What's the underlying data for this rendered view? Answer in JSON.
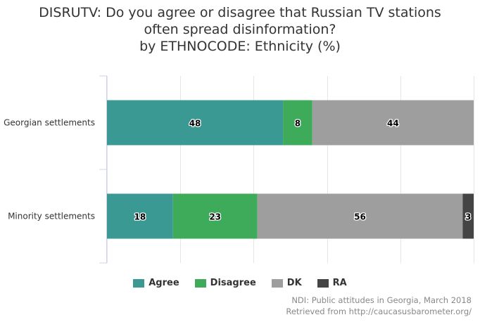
{
  "title": {
    "line1": "DISRUTV: Do you agree or disagree that Russian TV stations",
    "line2": "often spread disinformation?",
    "line3": "by ETHNOCODE: Ethnicity (%)"
  },
  "chart_data": {
    "type": "bar",
    "orientation": "horizontal",
    "stacked": true,
    "categories": [
      "Georgian settlements",
      "Minority settlements"
    ],
    "series": [
      {
        "name": "Agree",
        "color": "#3a9a93",
        "values": [
          48,
          18
        ]
      },
      {
        "name": "Disagree",
        "color": "#3dab5a",
        "values": [
          8,
          23
        ]
      },
      {
        "name": "DK",
        "color": "#9e9e9e",
        "values": [
          44,
          56
        ]
      },
      {
        "name": "RA",
        "color": "#444444",
        "values": [
          0,
          3
        ]
      }
    ],
    "xlim": [
      0,
      100
    ],
    "grid": true,
    "legend": "bottom"
  },
  "credits": {
    "line1": "NDI: Public attitudes in Georgia, March 2018",
    "line2": "Retrieved from http://caucasusbarometer.org/"
  }
}
